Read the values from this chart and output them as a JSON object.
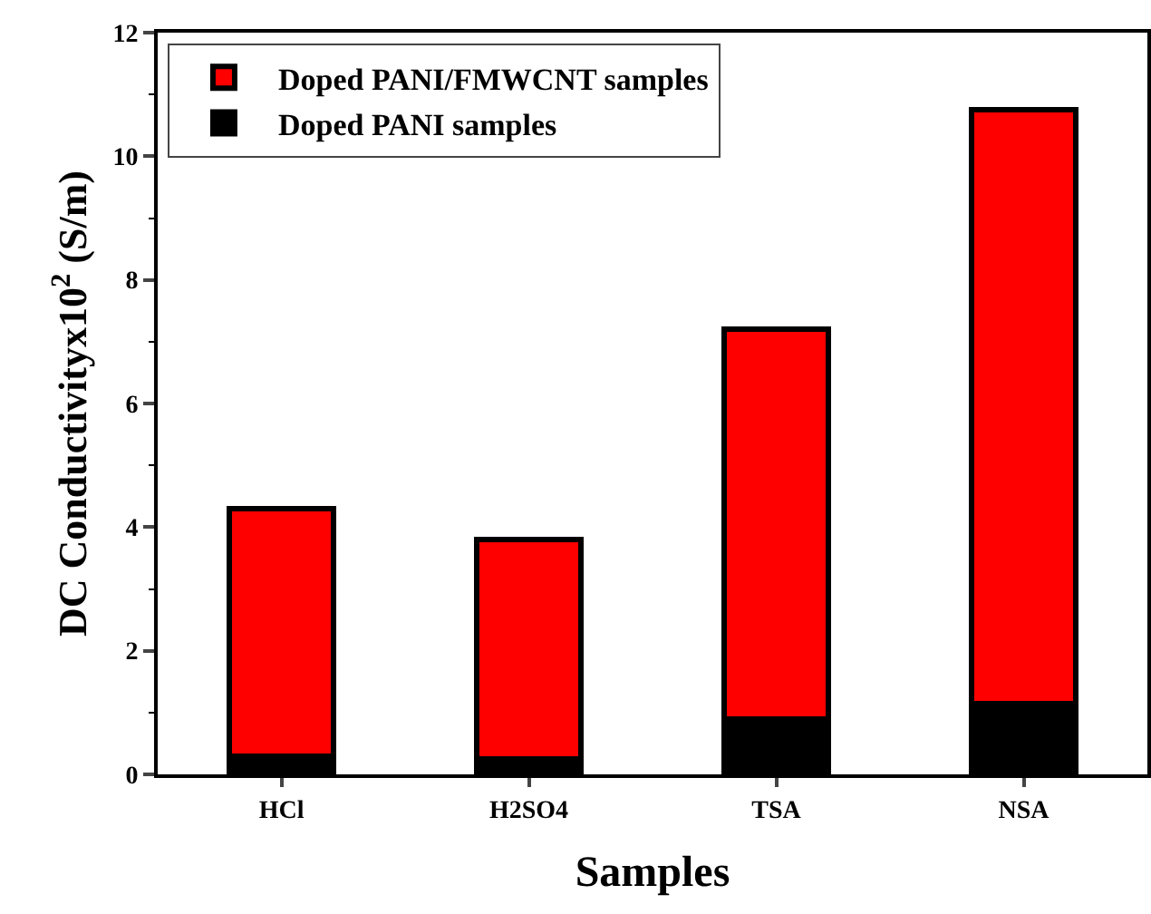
{
  "chart_data": {
    "type": "bar",
    "stacked": true,
    "xlabel": "Samples",
    "ylabel": "DC Conductivityx10$^{2}$ (S/m)",
    "categories": [
      "HCl",
      "H2SO4",
      "TSA",
      "NSA"
    ],
    "series": [
      {
        "name": "Doped PANI samples",
        "color": "#000000",
        "values": [
          0.3,
          0.25,
          0.9,
          1.15
        ]
      },
      {
        "name": "Doped PANI/FMWCNT samples",
        "color": "#ff0000",
        "values": [
          4.0,
          3.55,
          6.3,
          9.6
        ]
      }
    ],
    "ylim": [
      0,
      12
    ],
    "yticks": [
      0,
      2,
      4,
      6,
      8,
      10,
      12
    ],
    "grid": false,
    "legend": "top left"
  }
}
